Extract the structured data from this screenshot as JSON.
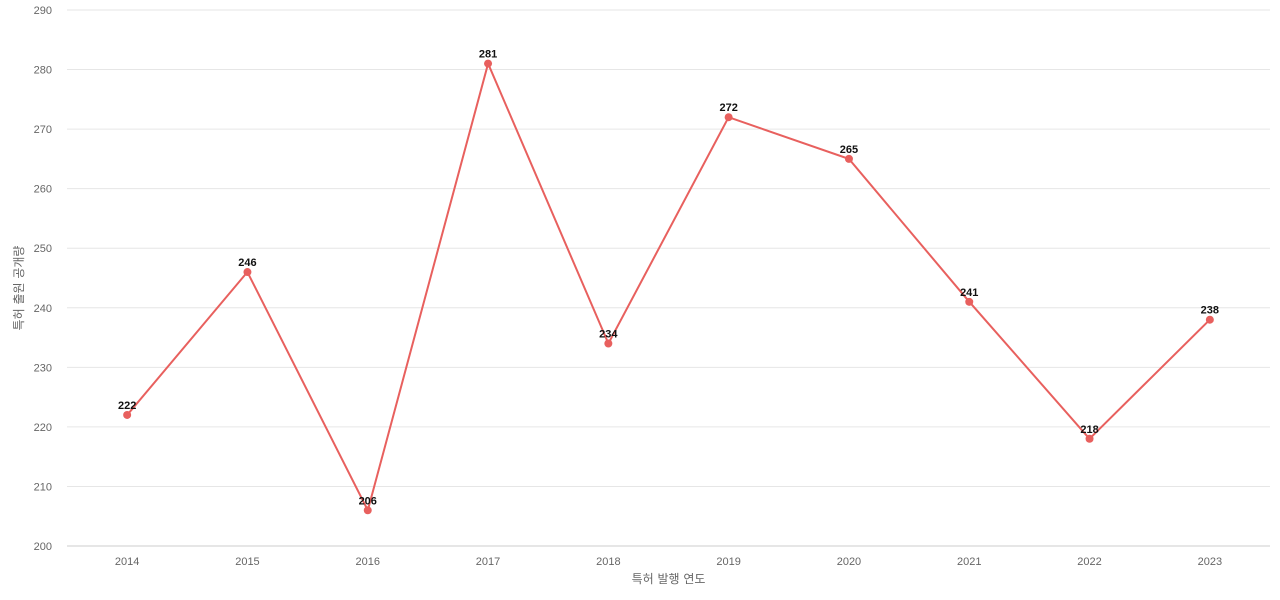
{
  "chart_data": {
    "type": "line",
    "title": "",
    "xlabel": "특허 발행 연도",
    "ylabel": "특허 출원 공개량",
    "categories": [
      "2014",
      "2015",
      "2016",
      "2017",
      "2018",
      "2019",
      "2020",
      "2021",
      "2022",
      "2023"
    ],
    "series": [
      {
        "values": [
          222,
          246,
          206,
          281,
          234,
          272,
          265,
          241,
          218,
          238
        ]
      }
    ],
    "ylim": [
      200,
      290
    ],
    "yticks": [
      200,
      210,
      220,
      230,
      240,
      250,
      260,
      270,
      280,
      290
    ],
    "grid": true,
    "legend": "none",
    "line_color": "#e8605e"
  }
}
